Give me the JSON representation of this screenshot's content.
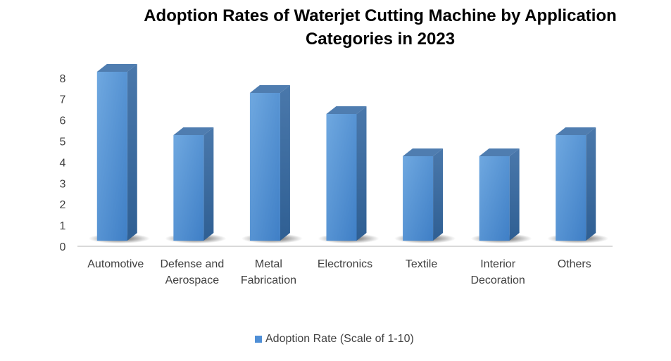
{
  "chart_data": {
    "type": "bar",
    "title_line1": "Adoption Rates of Waterjet Cutting Machine by Application",
    "title_line2": "Categories in 2023",
    "categories": [
      [
        "Automotive"
      ],
      [
        "Defense and",
        "Aerospace"
      ],
      [
        "Metal",
        "Fabrication"
      ],
      [
        "Electronics"
      ],
      [
        "Textile"
      ],
      [
        "Interior",
        "Decoration"
      ],
      [
        "Others"
      ]
    ],
    "series": [
      {
        "name": "Adoption Rate (Scale of 1-10)",
        "values": [
          8,
          5,
          7,
          6,
          4,
          4,
          5
        ],
        "color": "#4f8fd6"
      }
    ],
    "yticks": [
      "0",
      "1",
      "2",
      "3",
      "4",
      "5",
      "6",
      "7",
      "8"
    ],
    "ylim": [
      0,
      8
    ],
    "xlabel": "",
    "ylabel": "",
    "legend_position": "bottom",
    "grid": false
  }
}
